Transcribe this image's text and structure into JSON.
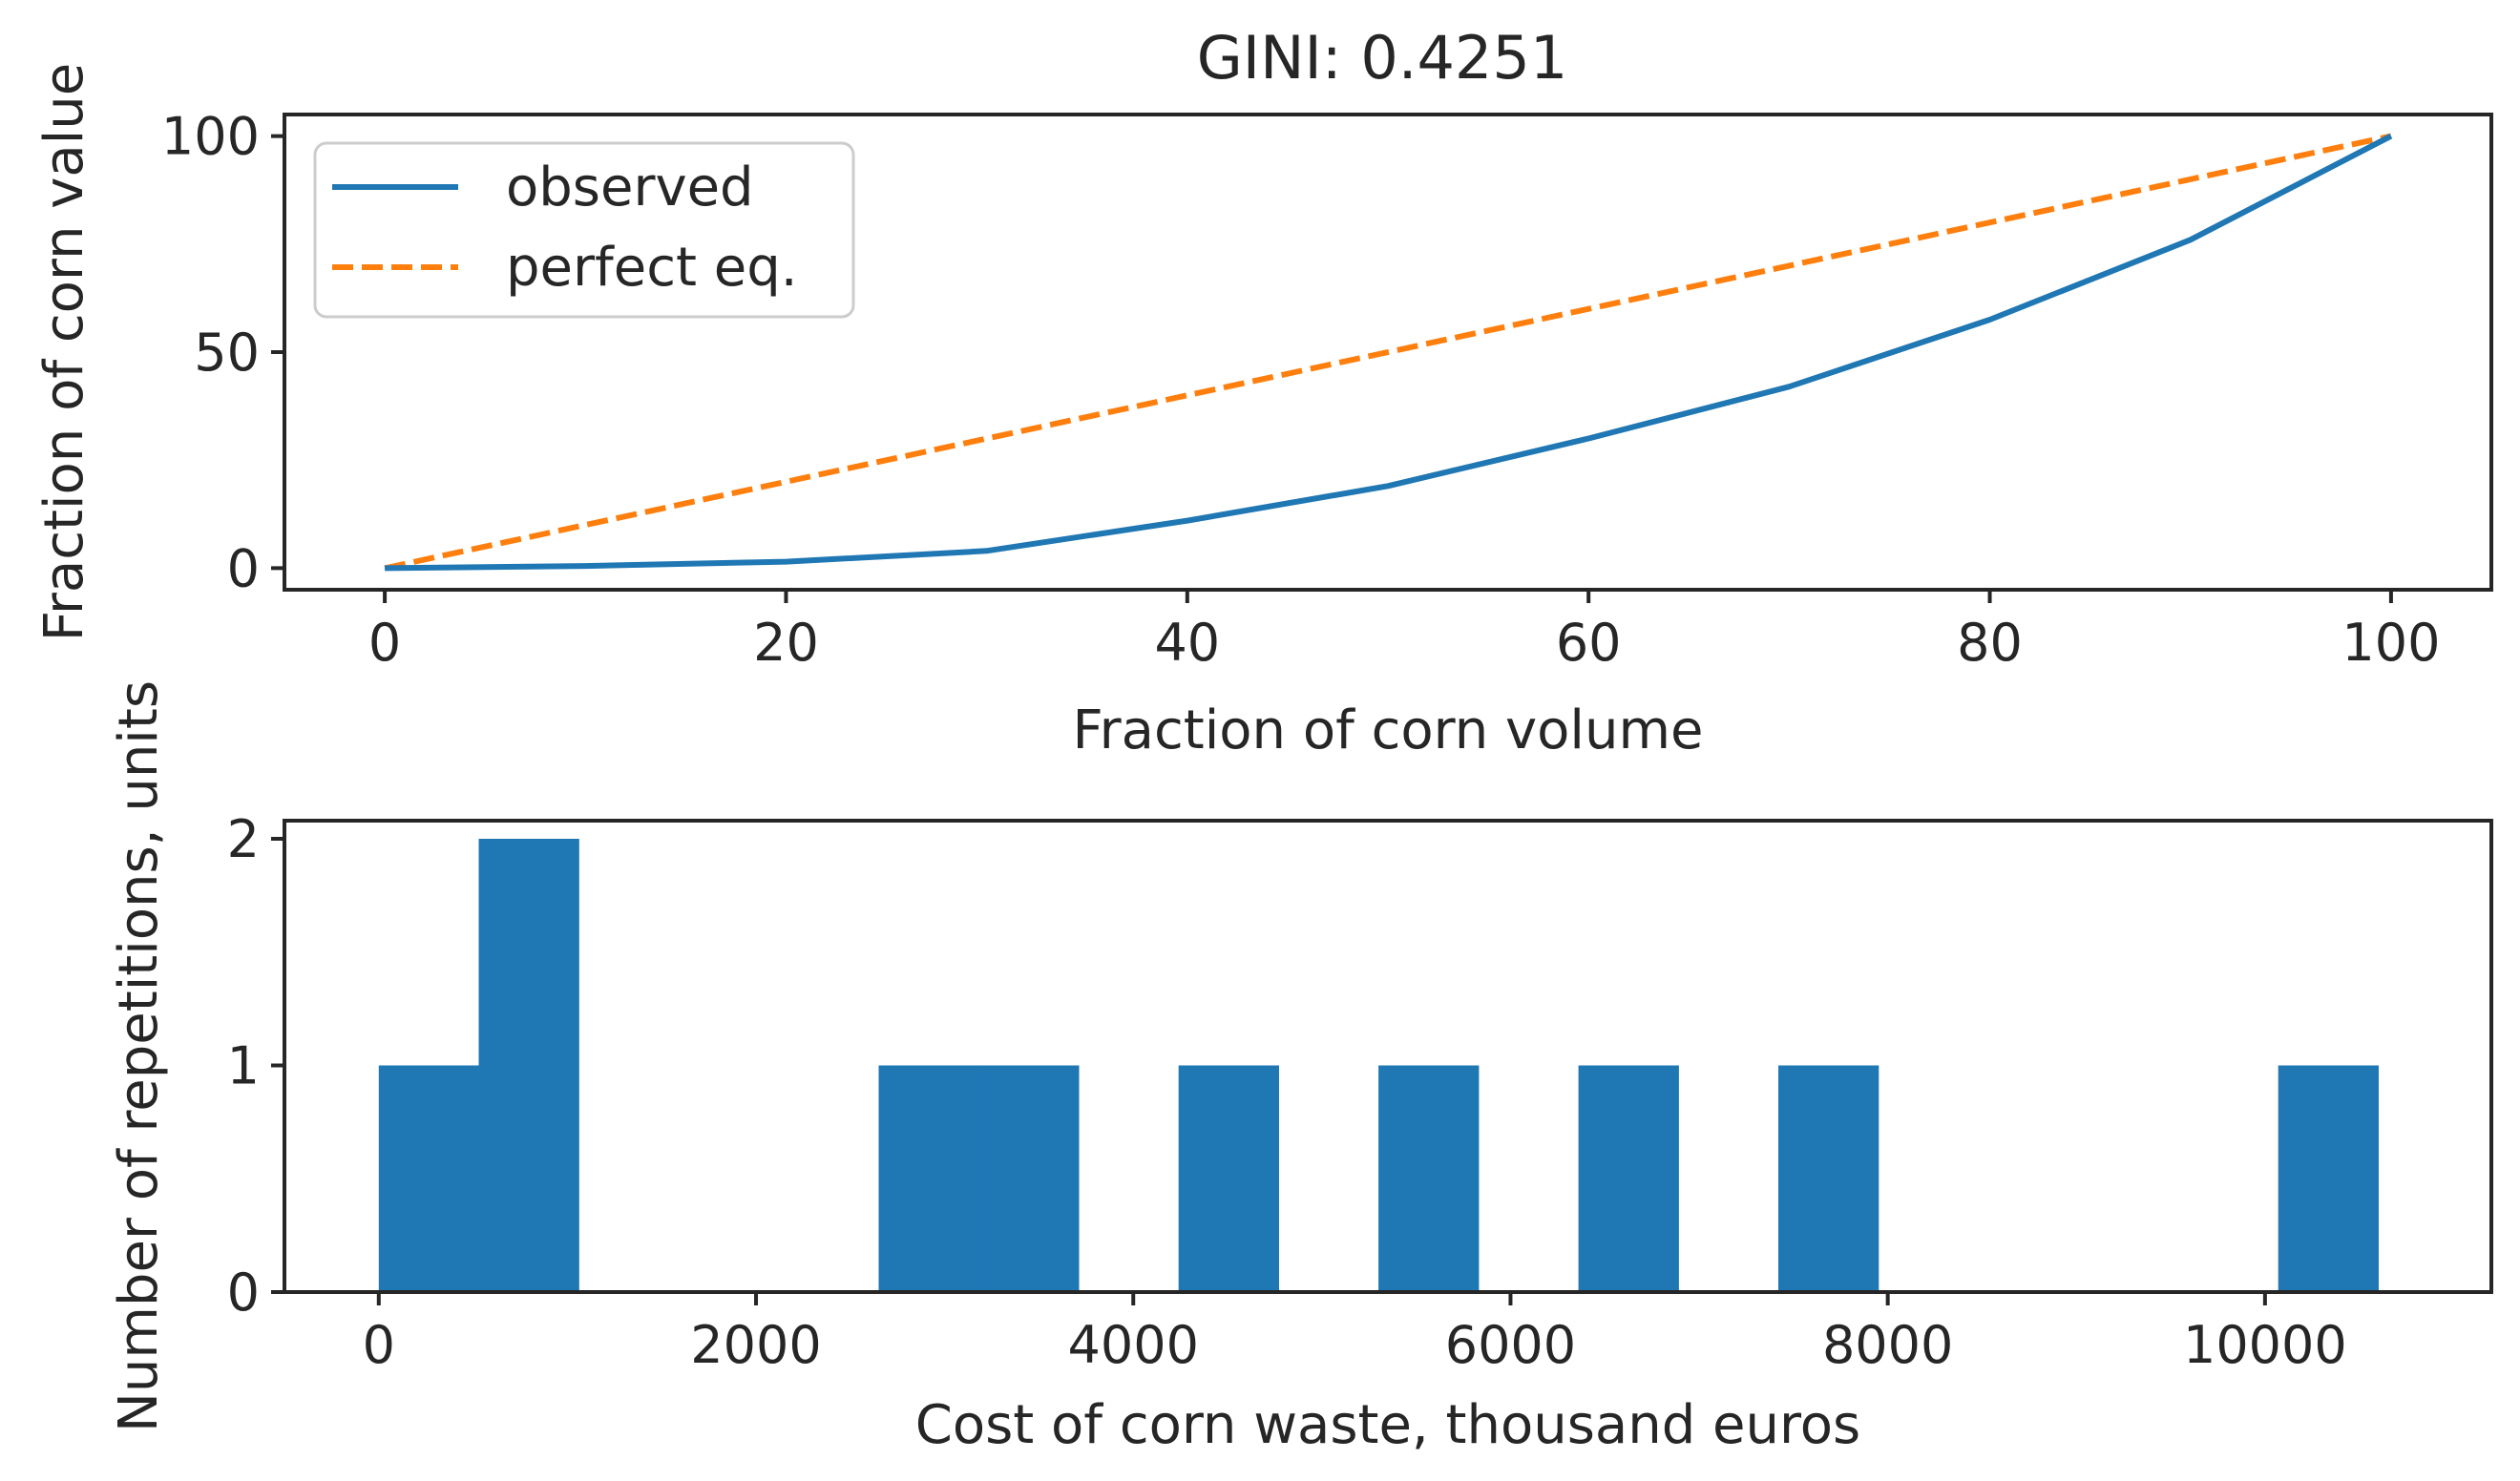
{
  "chart_data": [
    {
      "type": "line",
      "title": "GINI: 0.4251",
      "xlabel": "Fraction of corn volume",
      "ylabel": "Fraction of corn value",
      "xlim": [
        -5,
        105
      ],
      "ylim": [
        -5,
        105
      ],
      "x_ticks": [
        0,
        20,
        40,
        60,
        80,
        100
      ],
      "y_ticks": [
        0,
        50,
        100
      ],
      "x_tick_labels": [
        "0",
        "20",
        "40",
        "60",
        "80",
        "100"
      ],
      "y_tick_labels": [
        "0",
        "50",
        "100"
      ],
      "grid": false,
      "legend": "top-left",
      "series": [
        {
          "name": "observed",
          "style": "solid",
          "color": "#1f77b4",
          "x": [
            0,
            10,
            20,
            30,
            40,
            50,
            60,
            70,
            80,
            90,
            100
          ],
          "y": [
            0,
            0.5,
            1.5,
            4,
            11,
            19,
            30,
            42,
            57.5,
            76,
            100
          ]
        },
        {
          "name": "perfect eq.",
          "style": "dashed",
          "color": "#ff7f0e",
          "x": [
            0,
            100
          ],
          "y": [
            0,
            100
          ]
        }
      ]
    },
    {
      "type": "bar",
      "subtype": "histogram",
      "title": "",
      "xlabel": "Cost of corn waste, thousand euros",
      "ylabel": "Number of repetitions, units",
      "xlim": [
        -500,
        11200
      ],
      "ylim": [
        0,
        2.08
      ],
      "x_ticks": [
        0,
        2000,
        4000,
        6000,
        8000,
        10000
      ],
      "y_ticks": [
        0,
        1,
        2
      ],
      "x_tick_labels": [
        "0",
        "2000",
        "4000",
        "6000",
        "8000",
        "10000"
      ],
      "y_tick_labels": [
        "0",
        "1",
        "2"
      ],
      "grid": false,
      "color": "#1f77b4",
      "bin_width": 530,
      "bins": [
        {
          "start": 0,
          "count": 1
        },
        {
          "start": 530,
          "count": 2
        },
        {
          "start": 2650,
          "count": 1
        },
        {
          "start": 3180,
          "count": 1
        },
        {
          "start": 4240,
          "count": 1
        },
        {
          "start": 5300,
          "count": 1
        },
        {
          "start": 6360,
          "count": 1
        },
        {
          "start": 7420,
          "count": 1
        },
        {
          "start": 10070,
          "count": 1
        }
      ]
    }
  ]
}
